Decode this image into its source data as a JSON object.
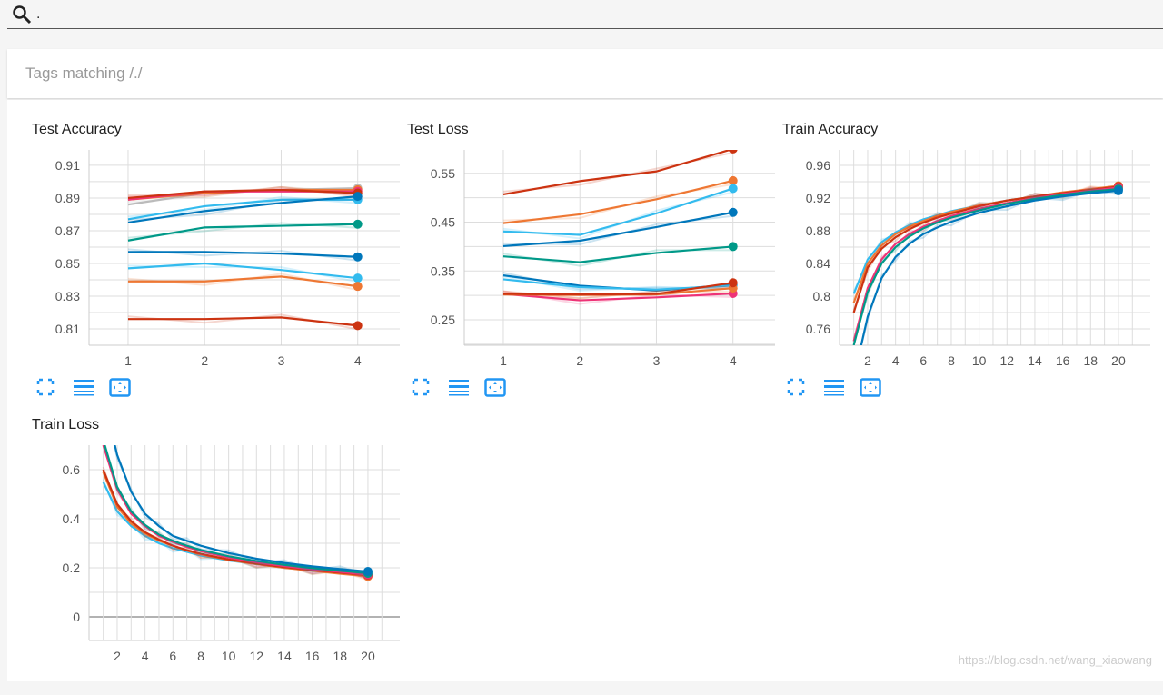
{
  "search": {
    "value": "."
  },
  "tag_filter": {
    "label": "Tags matching /./"
  },
  "watermark": "https://blog.csdn.net/wang_xiaowang",
  "chart_data": [
    {
      "type": "line",
      "title": "Test Accuracy",
      "xlim": [
        0.49,
        4.49
      ],
      "ylim": [
        0.8,
        0.9194
      ],
      "xticks": [
        1,
        2,
        3,
        4
      ],
      "xgrid": [
        1,
        2,
        3,
        4
      ],
      "yticks": [
        0.81,
        0.83,
        0.85,
        0.87,
        0.89,
        0.91
      ],
      "ygrid_step": 0.01,
      "ydec": 2,
      "series": [
        {
          "color": "#bbbbbb",
          "x": [
            1,
            2,
            3,
            4
          ],
          "y": [
            0.886,
            0.893,
            0.895,
            0.896
          ]
        },
        {
          "color": "#ee7733",
          "x": [
            1,
            2,
            3,
            4
          ],
          "y": [
            0.889,
            0.893,
            0.895,
            0.895
          ]
        },
        {
          "color": "#ee3377",
          "x": [
            1,
            2,
            3,
            4
          ],
          "y": [
            0.889,
            0.894,
            0.894,
            0.894
          ]
        },
        {
          "color": "#cc3311",
          "x": [
            1,
            2,
            3,
            4
          ],
          "y": [
            0.89,
            0.894,
            0.895,
            0.893
          ]
        },
        {
          "color": "#33bbee",
          "x": [
            1,
            2,
            3,
            4
          ],
          "y": [
            0.877,
            0.885,
            0.889,
            0.889
          ]
        },
        {
          "color": "#0077bb",
          "x": [
            1,
            2,
            3,
            4
          ],
          "y": [
            0.875,
            0.882,
            0.887,
            0.891
          ]
        },
        {
          "color": "#009988",
          "x": [
            1,
            2,
            3,
            4
          ],
          "y": [
            0.864,
            0.872,
            0.873,
            0.874
          ]
        },
        {
          "color": "#0077bb",
          "x": [
            1,
            2,
            3,
            4
          ],
          "y": [
            0.857,
            0.857,
            0.856,
            0.854
          ]
        },
        {
          "color": "#33bbee",
          "x": [
            1,
            2,
            3,
            4
          ],
          "y": [
            0.847,
            0.85,
            0.846,
            0.841
          ]
        },
        {
          "color": "#ee7733",
          "x": [
            1,
            2,
            3,
            4
          ],
          "y": [
            0.839,
            0.839,
            0.842,
            0.836
          ]
        },
        {
          "color": "#cc3311",
          "x": [
            1,
            2,
            3,
            4
          ],
          "y": [
            0.816,
            0.816,
            0.817,
            0.812
          ]
        }
      ]
    },
    {
      "type": "line",
      "title": "Test Loss",
      "xlim": [
        0.49,
        4.49
      ],
      "ylim": [
        0.198,
        0.598
      ],
      "xticks": [
        1,
        2,
        3,
        4
      ],
      "xgrid": [
        1,
        2,
        3,
        4
      ],
      "yticks": [
        0.25,
        0.35,
        0.45,
        0.55
      ],
      "ygrid_step": 0.05,
      "ydec": 2,
      "series": [
        {
          "color": "#cc3311",
          "x": [
            1,
            2,
            3,
            4
          ],
          "y": [
            0.507,
            0.534,
            0.554,
            0.6
          ]
        },
        {
          "color": "#ee7733",
          "x": [
            1,
            2,
            3,
            4
          ],
          "y": [
            0.448,
            0.466,
            0.497,
            0.535
          ]
        },
        {
          "color": "#33bbee",
          "x": [
            1,
            2,
            3,
            4
          ],
          "y": [
            0.431,
            0.424,
            0.468,
            0.519
          ]
        },
        {
          "color": "#0077bb",
          "x": [
            1,
            2,
            3,
            4
          ],
          "y": [
            0.401,
            0.412,
            0.44,
            0.47
          ]
        },
        {
          "color": "#009988",
          "x": [
            1,
            2,
            3,
            4
          ],
          "y": [
            0.38,
            0.368,
            0.387,
            0.4
          ]
        },
        {
          "color": "#0077bb",
          "x": [
            1,
            2,
            3,
            4
          ],
          "y": [
            0.341,
            0.32,
            0.31,
            0.322
          ]
        },
        {
          "color": "#33bbee",
          "x": [
            1,
            2,
            3,
            4
          ],
          "y": [
            0.333,
            0.317,
            0.312,
            0.32
          ]
        },
        {
          "color": "#ee3377",
          "x": [
            1,
            2,
            3,
            4
          ],
          "y": [
            0.303,
            0.29,
            0.296,
            0.304
          ]
        },
        {
          "color": "#ee7733",
          "x": [
            1,
            2,
            3,
            4
          ],
          "y": [
            0.302,
            0.301,
            0.302,
            0.315
          ]
        },
        {
          "color": "#cc3311",
          "x": [
            1,
            2,
            3,
            4
          ],
          "y": [
            0.303,
            0.302,
            0.303,
            0.326
          ]
        }
      ]
    },
    {
      "type": "line",
      "title": "Train Accuracy",
      "xlim": [
        -0.02,
        21.96
      ],
      "ylim": [
        0.74,
        0.9789
      ],
      "xticks": [
        2,
        4,
        6,
        8,
        10,
        12,
        14,
        16,
        18,
        20
      ],
      "xgrid": [
        1,
        2,
        3,
        4,
        5,
        6,
        7,
        8,
        9,
        10,
        11,
        12,
        13,
        14,
        15,
        16,
        17,
        18,
        19,
        20,
        21
      ],
      "yticks": [
        0.76,
        0.8,
        0.84,
        0.88,
        0.92,
        0.96
      ],
      "ygrid_step": 0.02,
      "ydec": 2,
      "series": [
        {
          "color": "#33bbee",
          "x": [
            1,
            2,
            3,
            4,
            5,
            6,
            7,
            8,
            10,
            12,
            14,
            16,
            18,
            20
          ],
          "y": [
            0.803,
            0.845,
            0.866,
            0.878,
            0.887,
            0.894,
            0.899,
            0.904,
            0.911,
            0.917,
            0.922,
            0.926,
            0.929,
            0.932
          ]
        },
        {
          "color": "#ee7733",
          "x": [
            1,
            2,
            3,
            4,
            5,
            6,
            7,
            8,
            10,
            12,
            14,
            16,
            18,
            20
          ],
          "y": [
            0.792,
            0.84,
            0.862,
            0.876,
            0.885,
            0.892,
            0.898,
            0.903,
            0.911,
            0.917,
            0.922,
            0.927,
            0.931,
            0.935
          ]
        },
        {
          "color": "#cc3311",
          "x": [
            1,
            2,
            3,
            4,
            5,
            6,
            7,
            8,
            10,
            12,
            14,
            16,
            18,
            20
          ],
          "y": [
            0.78,
            0.835,
            0.858,
            0.872,
            0.882,
            0.89,
            0.896,
            0.901,
            0.91,
            0.917,
            0.922,
            0.926,
            0.93,
            0.934
          ]
        },
        {
          "color": "#ee3377",
          "x": [
            1,
            2,
            3,
            4,
            5,
            6,
            7,
            8,
            10,
            12,
            14,
            16,
            18,
            20
          ],
          "y": [
            0.745,
            0.81,
            0.845,
            0.864,
            0.876,
            0.885,
            0.892,
            0.898,
            0.907,
            0.914,
            0.92,
            0.925,
            0.929,
            0.933
          ]
        },
        {
          "color": "#009988",
          "x": [
            1,
            2,
            3,
            4,
            5,
            6,
            7,
            8,
            10,
            12,
            14,
            16,
            18,
            20
          ],
          "y": [
            0.74,
            0.805,
            0.84,
            0.86,
            0.873,
            0.883,
            0.89,
            0.896,
            0.905,
            0.913,
            0.919,
            0.924,
            0.928,
            0.931
          ]
        },
        {
          "color": "#0077bb",
          "x": [
            1,
            2,
            3,
            4,
            5,
            6,
            7,
            8,
            10,
            12,
            14,
            16,
            18,
            20
          ],
          "y": [
            0.7,
            0.775,
            0.822,
            0.848,
            0.864,
            0.876,
            0.884,
            0.891,
            0.902,
            0.91,
            0.917,
            0.922,
            0.926,
            0.929
          ]
        }
      ]
    },
    {
      "type": "line",
      "title": "Train Loss",
      "xlim": [
        -0.02,
        21.96
      ],
      "ylim": [
        -0.0963,
        0.7
      ],
      "xticks": [
        2,
        4,
        6,
        8,
        10,
        12,
        14,
        16,
        18,
        20
      ],
      "xgrid": [
        1,
        2,
        3,
        4,
        5,
        6,
        7,
        8,
        9,
        10,
        11,
        12,
        13,
        14,
        15,
        16,
        17,
        18,
        19,
        20,
        21
      ],
      "yticks": [
        0,
        0.2,
        0.4,
        0.6
      ],
      "ygrid_step": 0.1,
      "ydec": 1,
      "series": [
        {
          "color": "#33bbee",
          "x": [
            1,
            2,
            3,
            4,
            5,
            6,
            7,
            8,
            10,
            12,
            14,
            16,
            18,
            20
          ],
          "y": [
            0.55,
            0.43,
            0.37,
            0.33,
            0.3,
            0.28,
            0.265,
            0.25,
            0.23,
            0.215,
            0.2,
            0.19,
            0.18,
            0.17
          ]
        },
        {
          "color": "#ee7733",
          "x": [
            1,
            2,
            3,
            4,
            5,
            6,
            7,
            8,
            10,
            12,
            14,
            16,
            18,
            20
          ],
          "y": [
            0.59,
            0.45,
            0.38,
            0.34,
            0.31,
            0.29,
            0.27,
            0.255,
            0.232,
            0.215,
            0.2,
            0.188,
            0.176,
            0.165
          ]
        },
        {
          "color": "#cc3311",
          "x": [
            1,
            2,
            3,
            4,
            5,
            6,
            7,
            8,
            10,
            12,
            14,
            16,
            18,
            20
          ],
          "y": [
            0.6,
            0.46,
            0.39,
            0.345,
            0.315,
            0.29,
            0.272,
            0.257,
            0.234,
            0.217,
            0.203,
            0.191,
            0.18,
            0.17
          ]
        },
        {
          "color": "#ee3377",
          "x": [
            1,
            2,
            3,
            4,
            5,
            6,
            7,
            8,
            10,
            12,
            14,
            16,
            18,
            20
          ],
          "y": [
            0.7,
            0.52,
            0.42,
            0.37,
            0.33,
            0.305,
            0.285,
            0.268,
            0.242,
            0.222,
            0.207,
            0.194,
            0.183,
            0.172
          ]
        },
        {
          "color": "#009988",
          "x": [
            1,
            2,
            3,
            4,
            5,
            6,
            7,
            8,
            10,
            12,
            14,
            16,
            18,
            20
          ],
          "y": [
            0.72,
            0.53,
            0.43,
            0.375,
            0.335,
            0.31,
            0.29,
            0.273,
            0.247,
            0.228,
            0.212,
            0.199,
            0.188,
            0.178
          ]
        },
        {
          "color": "#0077bb",
          "x": [
            1,
            2,
            3,
            4,
            5,
            6,
            7,
            8,
            10,
            12,
            14,
            16,
            18,
            20
          ],
          "y": [
            0.9,
            0.66,
            0.51,
            0.42,
            0.37,
            0.33,
            0.31,
            0.29,
            0.26,
            0.237,
            0.22,
            0.206,
            0.195,
            0.185
          ]
        }
      ]
    }
  ]
}
